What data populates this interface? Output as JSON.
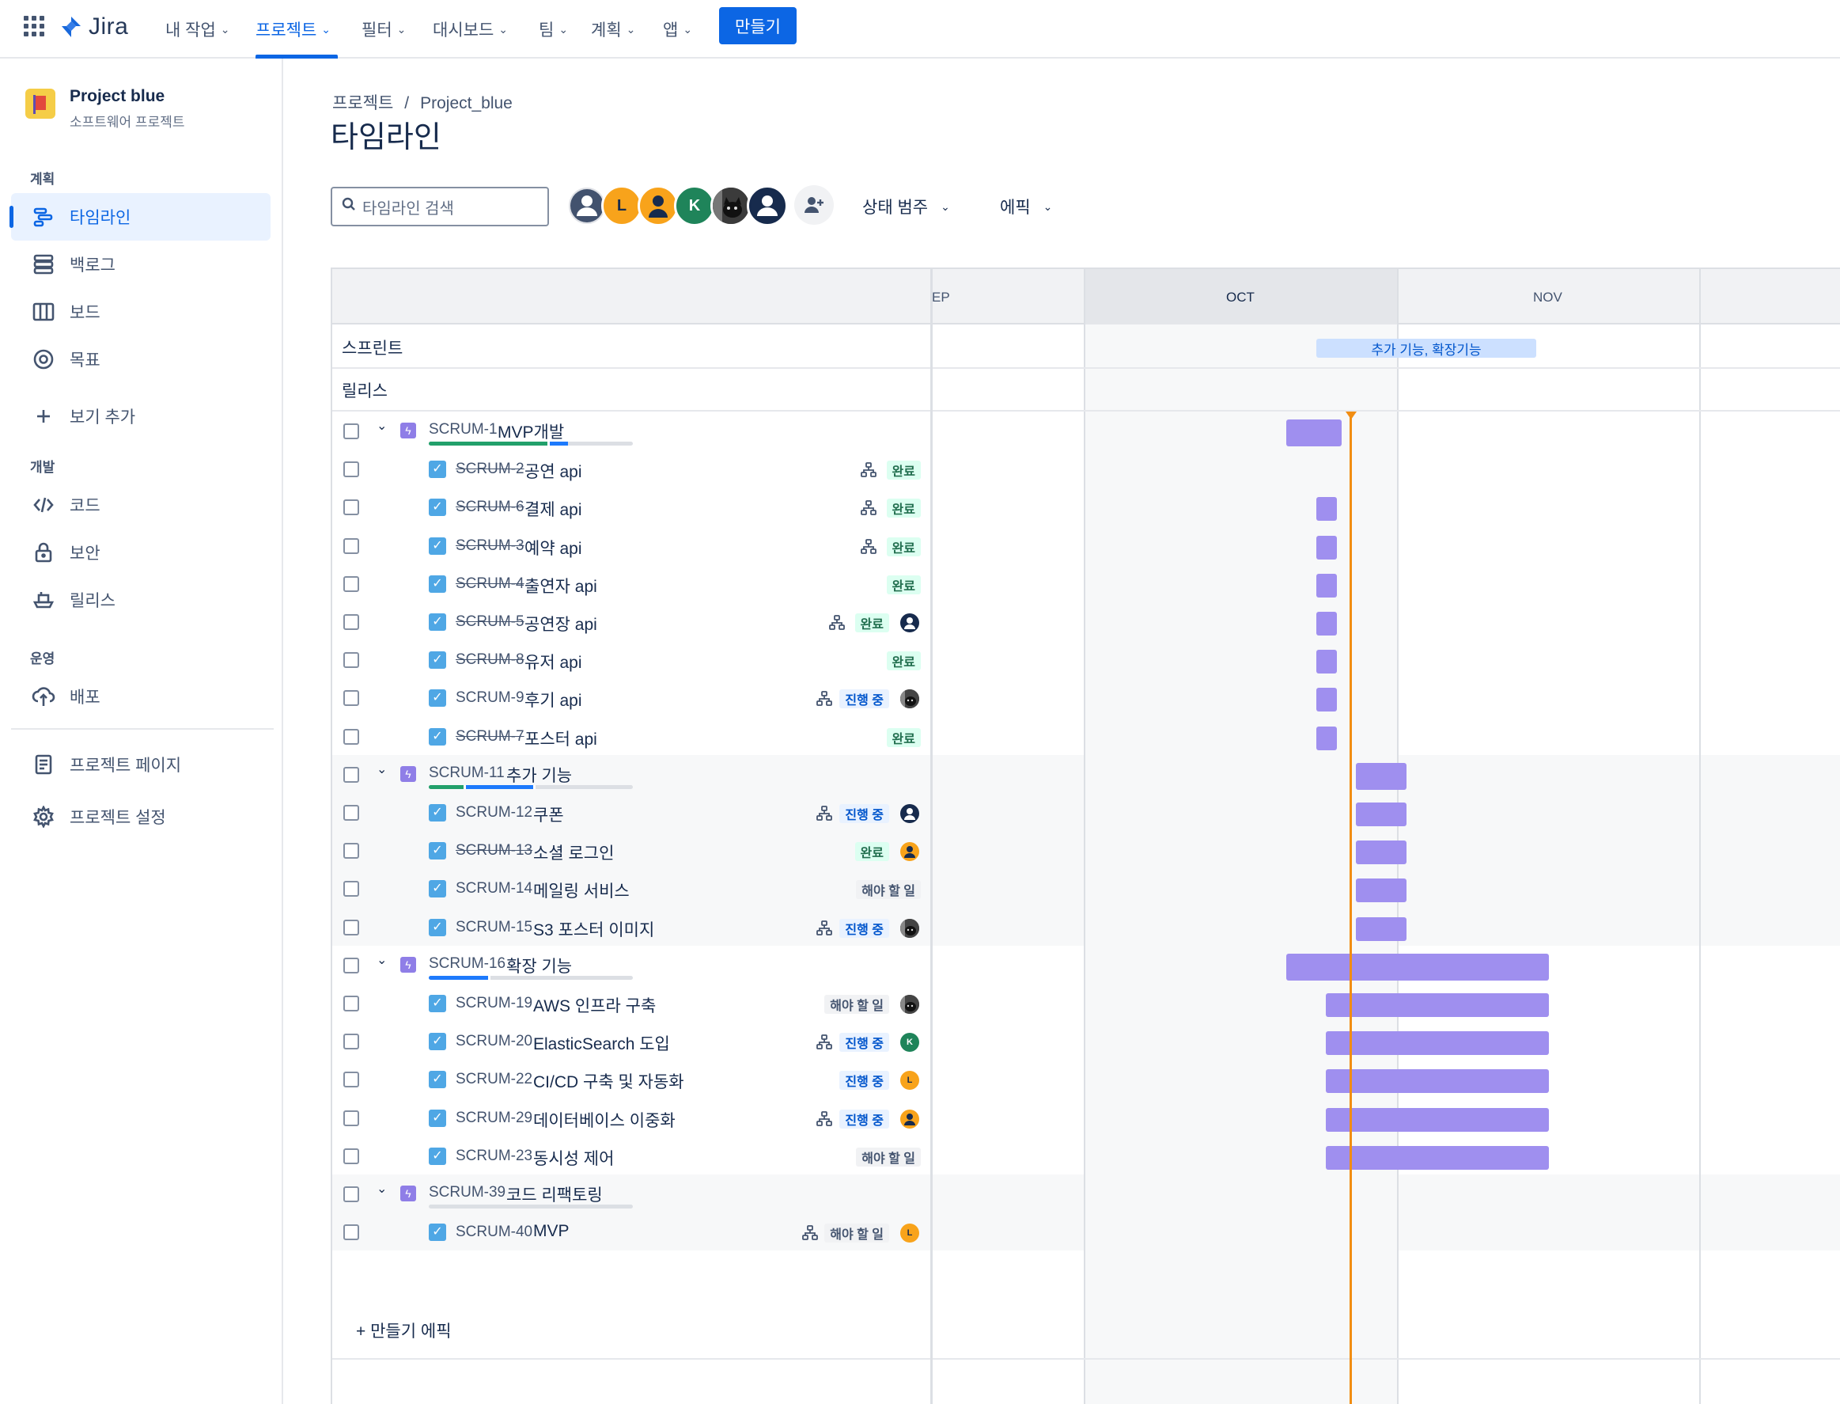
{
  "nav": {
    "logo": "Jira",
    "items": [
      {
        "label": "내 작업"
      },
      {
        "label": "프로젝트"
      },
      {
        "label": "필터"
      },
      {
        "label": "대시보드"
      },
      {
        "label": "팀"
      },
      {
        "label": "계획"
      },
      {
        "label": "앱"
      }
    ],
    "create_label": "만들기"
  },
  "sidebar": {
    "project_name": "Project blue",
    "project_type": "소프트웨어 프로젝트",
    "sections": {
      "plan": "계획",
      "dev": "개발",
      "ops": "운영"
    },
    "plan_items": [
      {
        "label": "타임라인",
        "icon": "timeline-icon"
      },
      {
        "label": "백로그",
        "icon": "backlog-icon"
      },
      {
        "label": "보드",
        "icon": "board-icon"
      },
      {
        "label": "목표",
        "icon": "goal-icon"
      },
      {
        "label": "보기 추가",
        "icon": "plus-icon"
      }
    ],
    "dev_items": [
      {
        "label": "코드",
        "icon": "code-icon"
      },
      {
        "label": "보안",
        "icon": "lock-icon"
      },
      {
        "label": "릴리스",
        "icon": "ship-icon"
      }
    ],
    "ops_items": [
      {
        "label": "배포",
        "icon": "cloud-upload-icon"
      }
    ],
    "bottom_items": [
      {
        "label": "프로젝트 페이지",
        "icon": "page-icon"
      },
      {
        "label": "프로젝트 설정",
        "icon": "gear-icon"
      }
    ]
  },
  "header": {
    "breadcrumb": [
      "프로젝트",
      "Project_blue"
    ],
    "title": "타임라인",
    "search_placeholder": "타임라인 검색",
    "avatar_letters": [
      "",
      "L",
      "",
      "K",
      "",
      ""
    ],
    "filter_status": "상태 범주",
    "filter_epic": "에픽"
  },
  "timeline": {
    "months": [
      "EP",
      "OCT",
      "NOV"
    ],
    "sprint_label": "스프린트",
    "release_label": "릴리스",
    "sprint_bar": "추가 기능, 확장기능",
    "create_epic": "+ 만들기 에픽",
    "epics": [
      {
        "key": "SCRUM-1",
        "summary": "MVP개발",
        "progress": {
          "done": 0.58,
          "in_progress": 0.09,
          "todo": 0.0
        },
        "children": [
          {
            "key": "SCRUM-2",
            "summary": "공연 api",
            "done": true,
            "status": "완료",
            "child": true,
            "assignee": ""
          },
          {
            "key": "SCRUM-6",
            "summary": "결제 api",
            "done": true,
            "status": "완료",
            "child": true,
            "assignee": ""
          },
          {
            "key": "SCRUM-3",
            "summary": "예약 api",
            "done": true,
            "status": "완료",
            "child": true,
            "assignee": ""
          },
          {
            "key": "SCRUM-4",
            "summary": "출연자 api",
            "done": true,
            "status": "완료",
            "child": false,
            "assignee": ""
          },
          {
            "key": "SCRUM-5",
            "summary": "공연장 api",
            "done": true,
            "status": "완료",
            "child": true,
            "assignee": "person"
          },
          {
            "key": "SCRUM-8",
            "summary": "유저 api",
            "done": true,
            "status": "완료",
            "child": false,
            "assignee": ""
          },
          {
            "key": "SCRUM-9",
            "summary": "후기 api",
            "done": false,
            "status": "진행 중",
            "child": true,
            "assignee": "photo"
          },
          {
            "key": "SCRUM-7",
            "summary": "포스터 api",
            "done": true,
            "status": "완료",
            "child": false,
            "assignee": ""
          }
        ]
      },
      {
        "key": "SCRUM-11",
        "summary": "추가 기능",
        "progress": {
          "done": 0.17,
          "in_progress": 0.33,
          "todo": 0.17
        },
        "children": [
          {
            "key": "SCRUM-12",
            "summary": "쿠폰",
            "done": false,
            "status": "진행 중",
            "child": true,
            "assignee": "person"
          },
          {
            "key": "SCRUM-13",
            "summary": "소셜 로그인",
            "done": true,
            "status": "완료",
            "child": false,
            "assignee": "orange-person"
          },
          {
            "key": "SCRUM-14",
            "summary": "메일링 서비스",
            "done": false,
            "status": "해야 할 일",
            "child": false,
            "assignee": ""
          },
          {
            "key": "SCRUM-15",
            "summary": "S3 포스터 이미지",
            "done": false,
            "status": "진행 중",
            "child": true,
            "assignee": "photo"
          }
        ]
      },
      {
        "key": "SCRUM-16",
        "summary": "확장 기능",
        "progress": {
          "done": 0.0,
          "in_progress": 0.29,
          "todo": 0.71
        },
        "children": [
          {
            "key": "SCRUM-19",
            "summary": "AWS 인프라 구축",
            "done": false,
            "status": "해야 할 일",
            "child": false,
            "assignee": "photo"
          },
          {
            "key": "SCRUM-20",
            "summary": "ElasticSearch 도입",
            "done": false,
            "status": "진행 중",
            "child": true,
            "assignee": "K"
          },
          {
            "key": "SCRUM-22",
            "summary": "CI/CD 구축 및 자동화",
            "done": false,
            "status": "진행 중",
            "child": false,
            "assignee": "L"
          },
          {
            "key": "SCRUM-29",
            "summary": "데이터베이스 이중화",
            "done": false,
            "status": "진행 중",
            "child": true,
            "assignee": "orange-person"
          },
          {
            "key": "SCRUM-23",
            "summary": "동시성 제어",
            "done": false,
            "status": "해야 할 일",
            "child": false,
            "assignee": ""
          }
        ]
      },
      {
        "key": "SCRUM-39",
        "summary": "코드 리팩토링",
        "progress": {
          "done": 0.0,
          "in_progress": 0.0,
          "todo": 1.0
        },
        "children": [
          {
            "key": "SCRUM-40",
            "summary": "MVP",
            "done": false,
            "status": "해야 할 일",
            "child": true,
            "assignee": "L"
          }
        ]
      }
    ]
  },
  "colors": {
    "accent": "#0c66e4",
    "bar": "#9f8fef",
    "today": "#f18d13",
    "done": "#22a06b",
    "in_progress": "#1d7afc"
  }
}
